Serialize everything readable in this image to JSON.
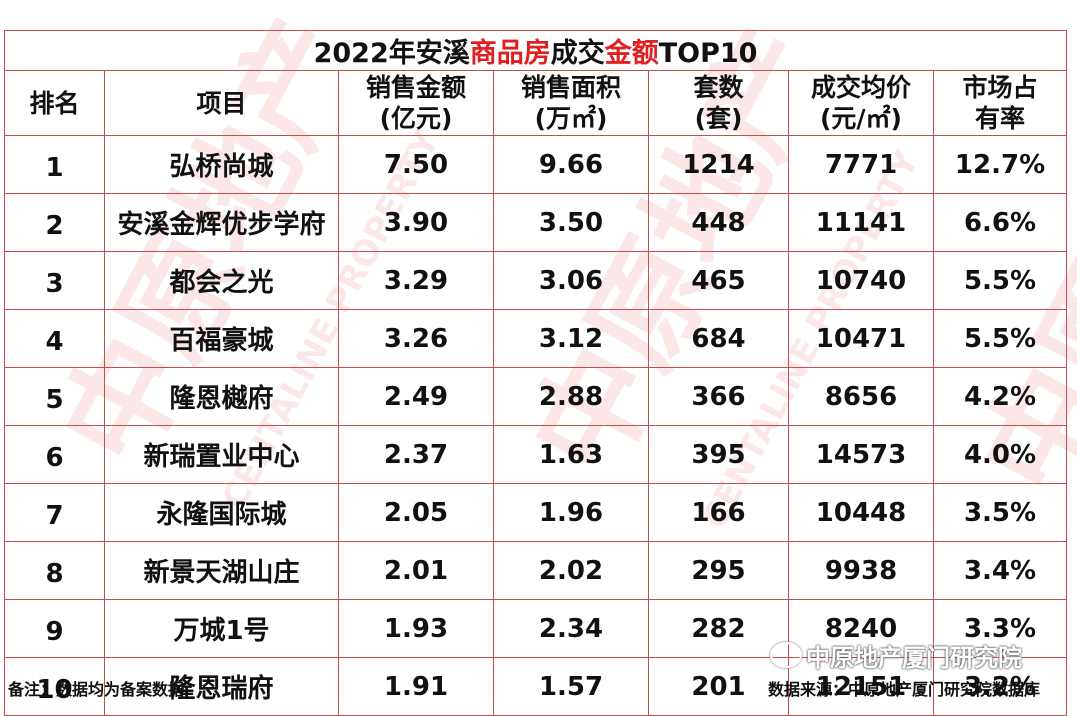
{
  "title": {
    "part1": "2022年安溪",
    "part2": "商品房",
    "part3": "成交",
    "part4": "金额",
    "part5": "TOP10"
  },
  "headers": [
    {
      "line1": "排名",
      "line2": ""
    },
    {
      "line1": "项目",
      "line2": ""
    },
    {
      "line1": "销售金额",
      "line2": "(亿元)"
    },
    {
      "line1": "销售面积",
      "line2": "(万㎡)"
    },
    {
      "line1": "套数",
      "line2": "(套)"
    },
    {
      "line1": "成交均价",
      "line2": "(元/㎡)"
    },
    {
      "line1": "市场占",
      "line2": "有率"
    }
  ],
  "rows": [
    {
      "rank": "1",
      "project": "弘桥尚城",
      "amount": "7.50",
      "area": "9.66",
      "units": "1214",
      "price": "7771",
      "share": "12.7%"
    },
    {
      "rank": "2",
      "project": "安溪金辉优步学府",
      "amount": "3.90",
      "area": "3.50",
      "units": "448",
      "price": "11141",
      "share": "6.6%"
    },
    {
      "rank": "3",
      "project": "都会之光",
      "amount": "3.29",
      "area": "3.06",
      "units": "465",
      "price": "10740",
      "share": "5.5%"
    },
    {
      "rank": "4",
      "project": "百福豪城",
      "amount": "3.26",
      "area": "3.12",
      "units": "684",
      "price": "10471",
      "share": "5.5%"
    },
    {
      "rank": "5",
      "project": "隆恩樾府",
      "amount": "2.49",
      "area": "2.88",
      "units": "366",
      "price": "8656",
      "share": "4.2%"
    },
    {
      "rank": "6",
      "project": "新瑞置业中心",
      "amount": "2.37",
      "area": "1.63",
      "units": "395",
      "price": "14573",
      "share": "4.0%"
    },
    {
      "rank": "7",
      "project": "永隆国际城",
      "amount": "2.05",
      "area": "1.96",
      "units": "166",
      "price": "10448",
      "share": "3.5%"
    },
    {
      "rank": "8",
      "project": "新景天湖山庄",
      "amount": "2.01",
      "area": "2.02",
      "units": "295",
      "price": "9938",
      "share": "3.4%"
    },
    {
      "rank": "9",
      "project": "万城1号",
      "amount": "1.93",
      "area": "2.34",
      "units": "282",
      "price": "8240",
      "share": "3.3%"
    },
    {
      "rank": "10",
      "project": "隆恩瑞府",
      "amount": "1.91",
      "area": "1.57",
      "units": "201",
      "price": "12151",
      "share": "3.2%"
    }
  ],
  "footer": {
    "note": "备注：数据均为备案数据",
    "source": "数据来源：中原地产厦门研究院数据库",
    "wechat_account": "中原地产厦门研究院"
  },
  "watermark": {
    "brand_cn": "中原地产",
    "brand_en": "CENTALINE PROPERTY"
  },
  "colors": {
    "border": "#c0504d",
    "highlight": "#e02020"
  }
}
